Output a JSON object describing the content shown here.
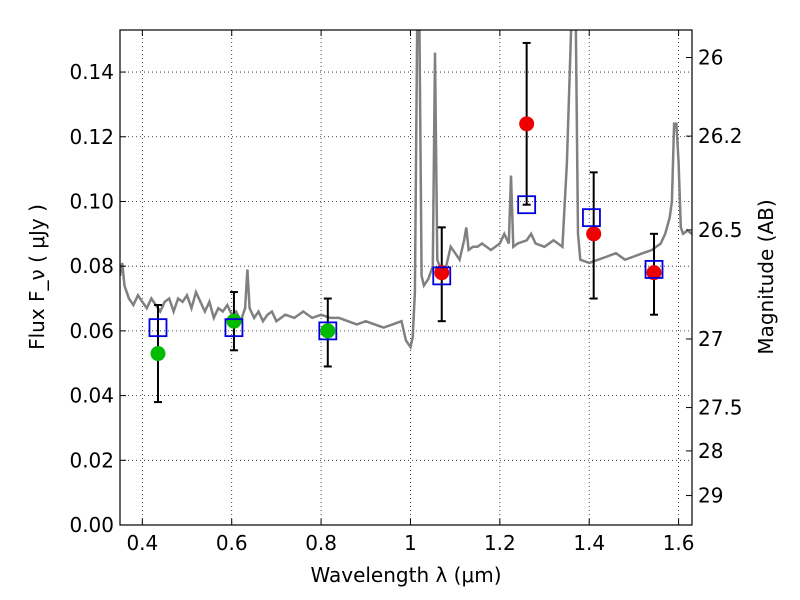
{
  "chart_data": {
    "type": "scatter",
    "xlabel": "Wavelength  λ (μm)",
    "ylabel": "Flux  F_ν  ( μJy )",
    "ylabel_right": "Magnitude (AB)",
    "xlim": [
      0.35,
      1.63
    ],
    "ylim": [
      0.0,
      0.153
    ],
    "grid": true,
    "x_ticks": [
      0.4,
      0.6,
      0.8,
      1.0,
      1.2,
      1.4,
      1.6
    ],
    "x_tick_labels": [
      "0.4",
      "0.6",
      "0.8",
      "1",
      "1.2",
      "1.4",
      "1.6"
    ],
    "y_ticks": [
      0.0,
      0.02,
      0.04,
      0.06,
      0.08,
      0.1,
      0.12,
      0.14
    ],
    "y_tick_labels": [
      "0.00",
      "0.02",
      "0.04",
      "0.06",
      "0.08",
      "0.10",
      "0.12",
      "0.14"
    ],
    "right_ticks": [
      {
        "label": "26",
        "flux": 0.1445
      },
      {
        "label": "26.2",
        "flux": 0.1202
      },
      {
        "label": "26.5",
        "flux": 0.0912
      },
      {
        "label": "27",
        "flux": 0.0575
      },
      {
        "label": "27.5",
        "flux": 0.0363
      },
      {
        "label": "28",
        "flux": 0.0229
      },
      {
        "label": "29",
        "flux": 0.0091
      }
    ],
    "colors": {
      "model": "#808080",
      "green_points": "#00bb00",
      "red_points": "#ee0000",
      "model_squares": "#0000dd",
      "error_bars": "#000000"
    },
    "series": [
      {
        "type": "line",
        "points": [
          [
            0.35,
            0.077
          ],
          [
            0.355,
            0.081
          ],
          [
            0.36,
            0.074
          ],
          [
            0.37,
            0.07
          ],
          [
            0.38,
            0.068
          ],
          [
            0.39,
            0.071
          ],
          [
            0.4,
            0.069
          ],
          [
            0.41,
            0.067
          ],
          [
            0.42,
            0.07
          ],
          [
            0.43,
            0.068
          ],
          [
            0.44,
            0.066
          ],
          [
            0.45,
            0.069
          ],
          [
            0.46,
            0.07
          ],
          [
            0.47,
            0.066
          ],
          [
            0.48,
            0.07
          ],
          [
            0.49,
            0.069
          ],
          [
            0.5,
            0.071
          ],
          [
            0.51,
            0.067
          ],
          [
            0.52,
            0.072
          ],
          [
            0.53,
            0.069
          ],
          [
            0.54,
            0.066
          ],
          [
            0.55,
            0.069
          ],
          [
            0.56,
            0.064
          ],
          [
            0.57,
            0.067
          ],
          [
            0.58,
            0.066
          ],
          [
            0.59,
            0.068
          ],
          [
            0.6,
            0.065
          ],
          [
            0.61,
            0.066
          ],
          [
            0.62,
            0.063
          ],
          [
            0.63,
            0.067
          ],
          [
            0.635,
            0.079
          ],
          [
            0.64,
            0.067
          ],
          [
            0.65,
            0.064
          ],
          [
            0.66,
            0.066
          ],
          [
            0.67,
            0.063
          ],
          [
            0.68,
            0.065
          ],
          [
            0.69,
            0.066
          ],
          [
            0.7,
            0.063
          ],
          [
            0.72,
            0.065
          ],
          [
            0.74,
            0.064
          ],
          [
            0.76,
            0.066
          ],
          [
            0.78,
            0.064
          ],
          [
            0.8,
            0.065
          ],
          [
            0.82,
            0.064
          ],
          [
            0.84,
            0.064
          ],
          [
            0.86,
            0.063
          ],
          [
            0.88,
            0.062
          ],
          [
            0.9,
            0.063
          ],
          [
            0.92,
            0.062
          ],
          [
            0.94,
            0.061
          ],
          [
            0.96,
            0.062
          ],
          [
            0.98,
            0.063
          ],
          [
            0.99,
            0.057
          ],
          [
            1.0,
            0.055
          ],
          [
            1.005,
            0.058
          ],
          [
            1.01,
            0.072
          ],
          [
            1.015,
            0.155
          ],
          [
            1.02,
            0.155
          ],
          [
            1.025,
            0.077
          ],
          [
            1.03,
            0.074
          ],
          [
            1.04,
            0.076
          ],
          [
            1.05,
            0.08
          ],
          [
            1.055,
            0.146
          ],
          [
            1.06,
            0.082
          ],
          [
            1.07,
            0.078
          ],
          [
            1.08,
            0.08
          ],
          [
            1.09,
            0.086
          ],
          [
            1.1,
            0.084
          ],
          [
            1.11,
            0.082
          ],
          [
            1.12,
            0.088
          ],
          [
            1.125,
            0.092
          ],
          [
            1.13,
            0.085
          ],
          [
            1.14,
            0.086
          ],
          [
            1.15,
            0.086
          ],
          [
            1.16,
            0.087
          ],
          [
            1.18,
            0.085
          ],
          [
            1.2,
            0.087
          ],
          [
            1.21,
            0.09
          ],
          [
            1.22,
            0.087
          ],
          [
            1.225,
            0.108
          ],
          [
            1.23,
            0.086
          ],
          [
            1.24,
            0.087
          ],
          [
            1.26,
            0.088
          ],
          [
            1.27,
            0.09
          ],
          [
            1.28,
            0.087
          ],
          [
            1.3,
            0.086
          ],
          [
            1.32,
            0.088
          ],
          [
            1.34,
            0.086
          ],
          [
            1.35,
            0.112
          ],
          [
            1.36,
            0.155
          ],
          [
            1.37,
            0.155
          ],
          [
            1.375,
            0.09
          ],
          [
            1.38,
            0.082
          ],
          [
            1.4,
            0.081
          ],
          [
            1.42,
            0.082
          ],
          [
            1.44,
            0.083
          ],
          [
            1.46,
            0.084
          ],
          [
            1.48,
            0.082
          ],
          [
            1.5,
            0.083
          ],
          [
            1.52,
            0.084
          ],
          [
            1.54,
            0.085
          ],
          [
            1.56,
            0.087
          ],
          [
            1.57,
            0.09
          ],
          [
            1.58,
            0.095
          ],
          [
            1.585,
            0.1
          ],
          [
            1.59,
            0.124
          ],
          [
            1.595,
            0.124
          ],
          [
            1.6,
            0.112
          ],
          [
            1.605,
            0.092
          ],
          [
            1.61,
            0.09
          ],
          [
            1.62,
            0.091
          ],
          [
            1.63,
            0.09
          ]
        ]
      },
      {
        "type": "scatter",
        "points": [
          {
            "x": 0.435,
            "y": 0.053,
            "yerr_low": 0.038,
            "yerr_high": 0.068
          },
          {
            "x": 0.605,
            "y": 0.063,
            "yerr_low": 0.054,
            "yerr_high": 0.072
          },
          {
            "x": 0.815,
            "y": 0.06,
            "yerr_low": 0.049,
            "yerr_high": 0.07
          }
        ]
      },
      {
        "type": "scatter",
        "points": [
          {
            "x": 1.07,
            "y": 0.078,
            "yerr_low": 0.063,
            "yerr_high": 0.092
          },
          {
            "x": 1.26,
            "y": 0.124,
            "yerr_low": 0.099,
            "yerr_high": 0.149
          },
          {
            "x": 1.41,
            "y": 0.09,
            "yerr_low": 0.07,
            "yerr_high": 0.109
          },
          {
            "x": 1.545,
            "y": 0.078,
            "yerr_low": 0.065,
            "yerr_high": 0.09
          }
        ]
      },
      {
        "type": "scatter",
        "points": [
          {
            "x": 0.435,
            "y": 0.061
          },
          {
            "x": 0.605,
            "y": 0.061
          },
          {
            "x": 0.815,
            "y": 0.06
          },
          {
            "x": 1.07,
            "y": 0.077
          },
          {
            "x": 1.26,
            "y": 0.099
          },
          {
            "x": 1.405,
            "y": 0.095
          },
          {
            "x": 1.545,
            "y": 0.079
          }
        ]
      }
    ]
  }
}
